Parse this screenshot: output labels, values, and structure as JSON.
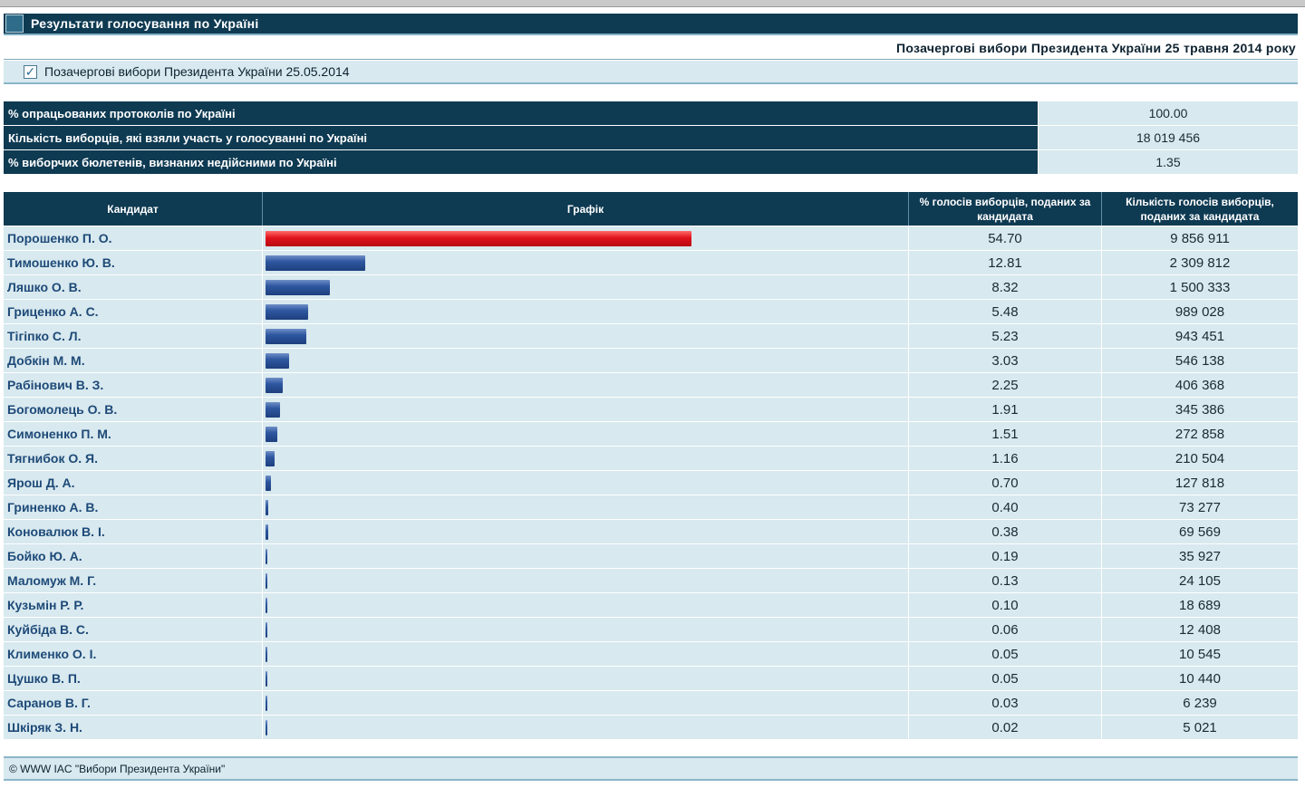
{
  "header": {
    "title": "Результати голосування по Україні",
    "subtitle": "Позачергові вибори Президента України 25 травня 2014 року",
    "election_label": "Позачергові вибори Президента України 25.05.2014"
  },
  "stats": [
    {
      "label": "% опрацьованих протоколів по Україні",
      "value": "100.00"
    },
    {
      "label": "Кількість виборців, які взяли участь у голосуванні по Україні",
      "value": "18 019 456"
    },
    {
      "label": "% виборчих бюлетенів, визнаних недійсними по Україні",
      "value": "1.35"
    }
  ],
  "columns": {
    "candidate": "Кандидат",
    "graph": "Графік",
    "percent": "% голосів виборців, поданих за кандидата",
    "votes": "Кількість голосів виборців, поданих за кандидата"
  },
  "colors": {
    "header": "#0e3a52",
    "row": "#d8e9ef",
    "winner_bar": "#e0121c",
    "bar": "#2e57a0"
  },
  "candidates": [
    {
      "name": "Порошенко П. О.",
      "percent": "54.70",
      "pct_num": 54.7,
      "votes": "9 856 911",
      "winner": true
    },
    {
      "name": "Тимошенко Ю. В.",
      "percent": "12.81",
      "pct_num": 12.81,
      "votes": "2 309 812"
    },
    {
      "name": "Ляшко О. В.",
      "percent": "8.32",
      "pct_num": 8.32,
      "votes": "1 500 333"
    },
    {
      "name": "Гриценко А. С.",
      "percent": "5.48",
      "pct_num": 5.48,
      "votes": "989 028"
    },
    {
      "name": "Тігіпко С. Л.",
      "percent": "5.23",
      "pct_num": 5.23,
      "votes": "943 451"
    },
    {
      "name": "Добкін М. М.",
      "percent": "3.03",
      "pct_num": 3.03,
      "votes": "546 138"
    },
    {
      "name": "Рабінович В. З.",
      "percent": "2.25",
      "pct_num": 2.25,
      "votes": "406 368"
    },
    {
      "name": "Богомолець О. В.",
      "percent": "1.91",
      "pct_num": 1.91,
      "votes": "345 386"
    },
    {
      "name": "Симоненко П. М.",
      "percent": "1.51",
      "pct_num": 1.51,
      "votes": "272 858"
    },
    {
      "name": "Тягнибок О. Я.",
      "percent": "1.16",
      "pct_num": 1.16,
      "votes": "210 504"
    },
    {
      "name": "Ярош Д. А.",
      "percent": "0.70",
      "pct_num": 0.7,
      "votes": "127 818"
    },
    {
      "name": "Гриненко А. В.",
      "percent": "0.40",
      "pct_num": 0.4,
      "votes": "73 277"
    },
    {
      "name": "Коновалюк В. І.",
      "percent": "0.38",
      "pct_num": 0.38,
      "votes": "69 569"
    },
    {
      "name": "Бойко Ю. А.",
      "percent": "0.19",
      "pct_num": 0.19,
      "votes": "35 927"
    },
    {
      "name": "Маломуж М. Г.",
      "percent": "0.13",
      "pct_num": 0.13,
      "votes": "24 105"
    },
    {
      "name": "Кузьмін Р. Р.",
      "percent": "0.10",
      "pct_num": 0.1,
      "votes": "18 689"
    },
    {
      "name": "Куйбіда В. С.",
      "percent": "0.06",
      "pct_num": 0.06,
      "votes": "12 408"
    },
    {
      "name": "Клименко О. І.",
      "percent": "0.05",
      "pct_num": 0.05,
      "votes": "10 545"
    },
    {
      "name": "Цушко В. П.",
      "percent": "0.05",
      "pct_num": 0.05,
      "votes": "10 440"
    },
    {
      "name": "Саранов В. Г.",
      "percent": "0.03",
      "pct_num": 0.03,
      "votes": "6 239"
    },
    {
      "name": "Шкіряк З. Н.",
      "percent": "0.02",
      "pct_num": 0.02,
      "votes": "5 021"
    }
  ],
  "footer": {
    "text": "© WWW IAC \"Вибори Президента України\""
  }
}
